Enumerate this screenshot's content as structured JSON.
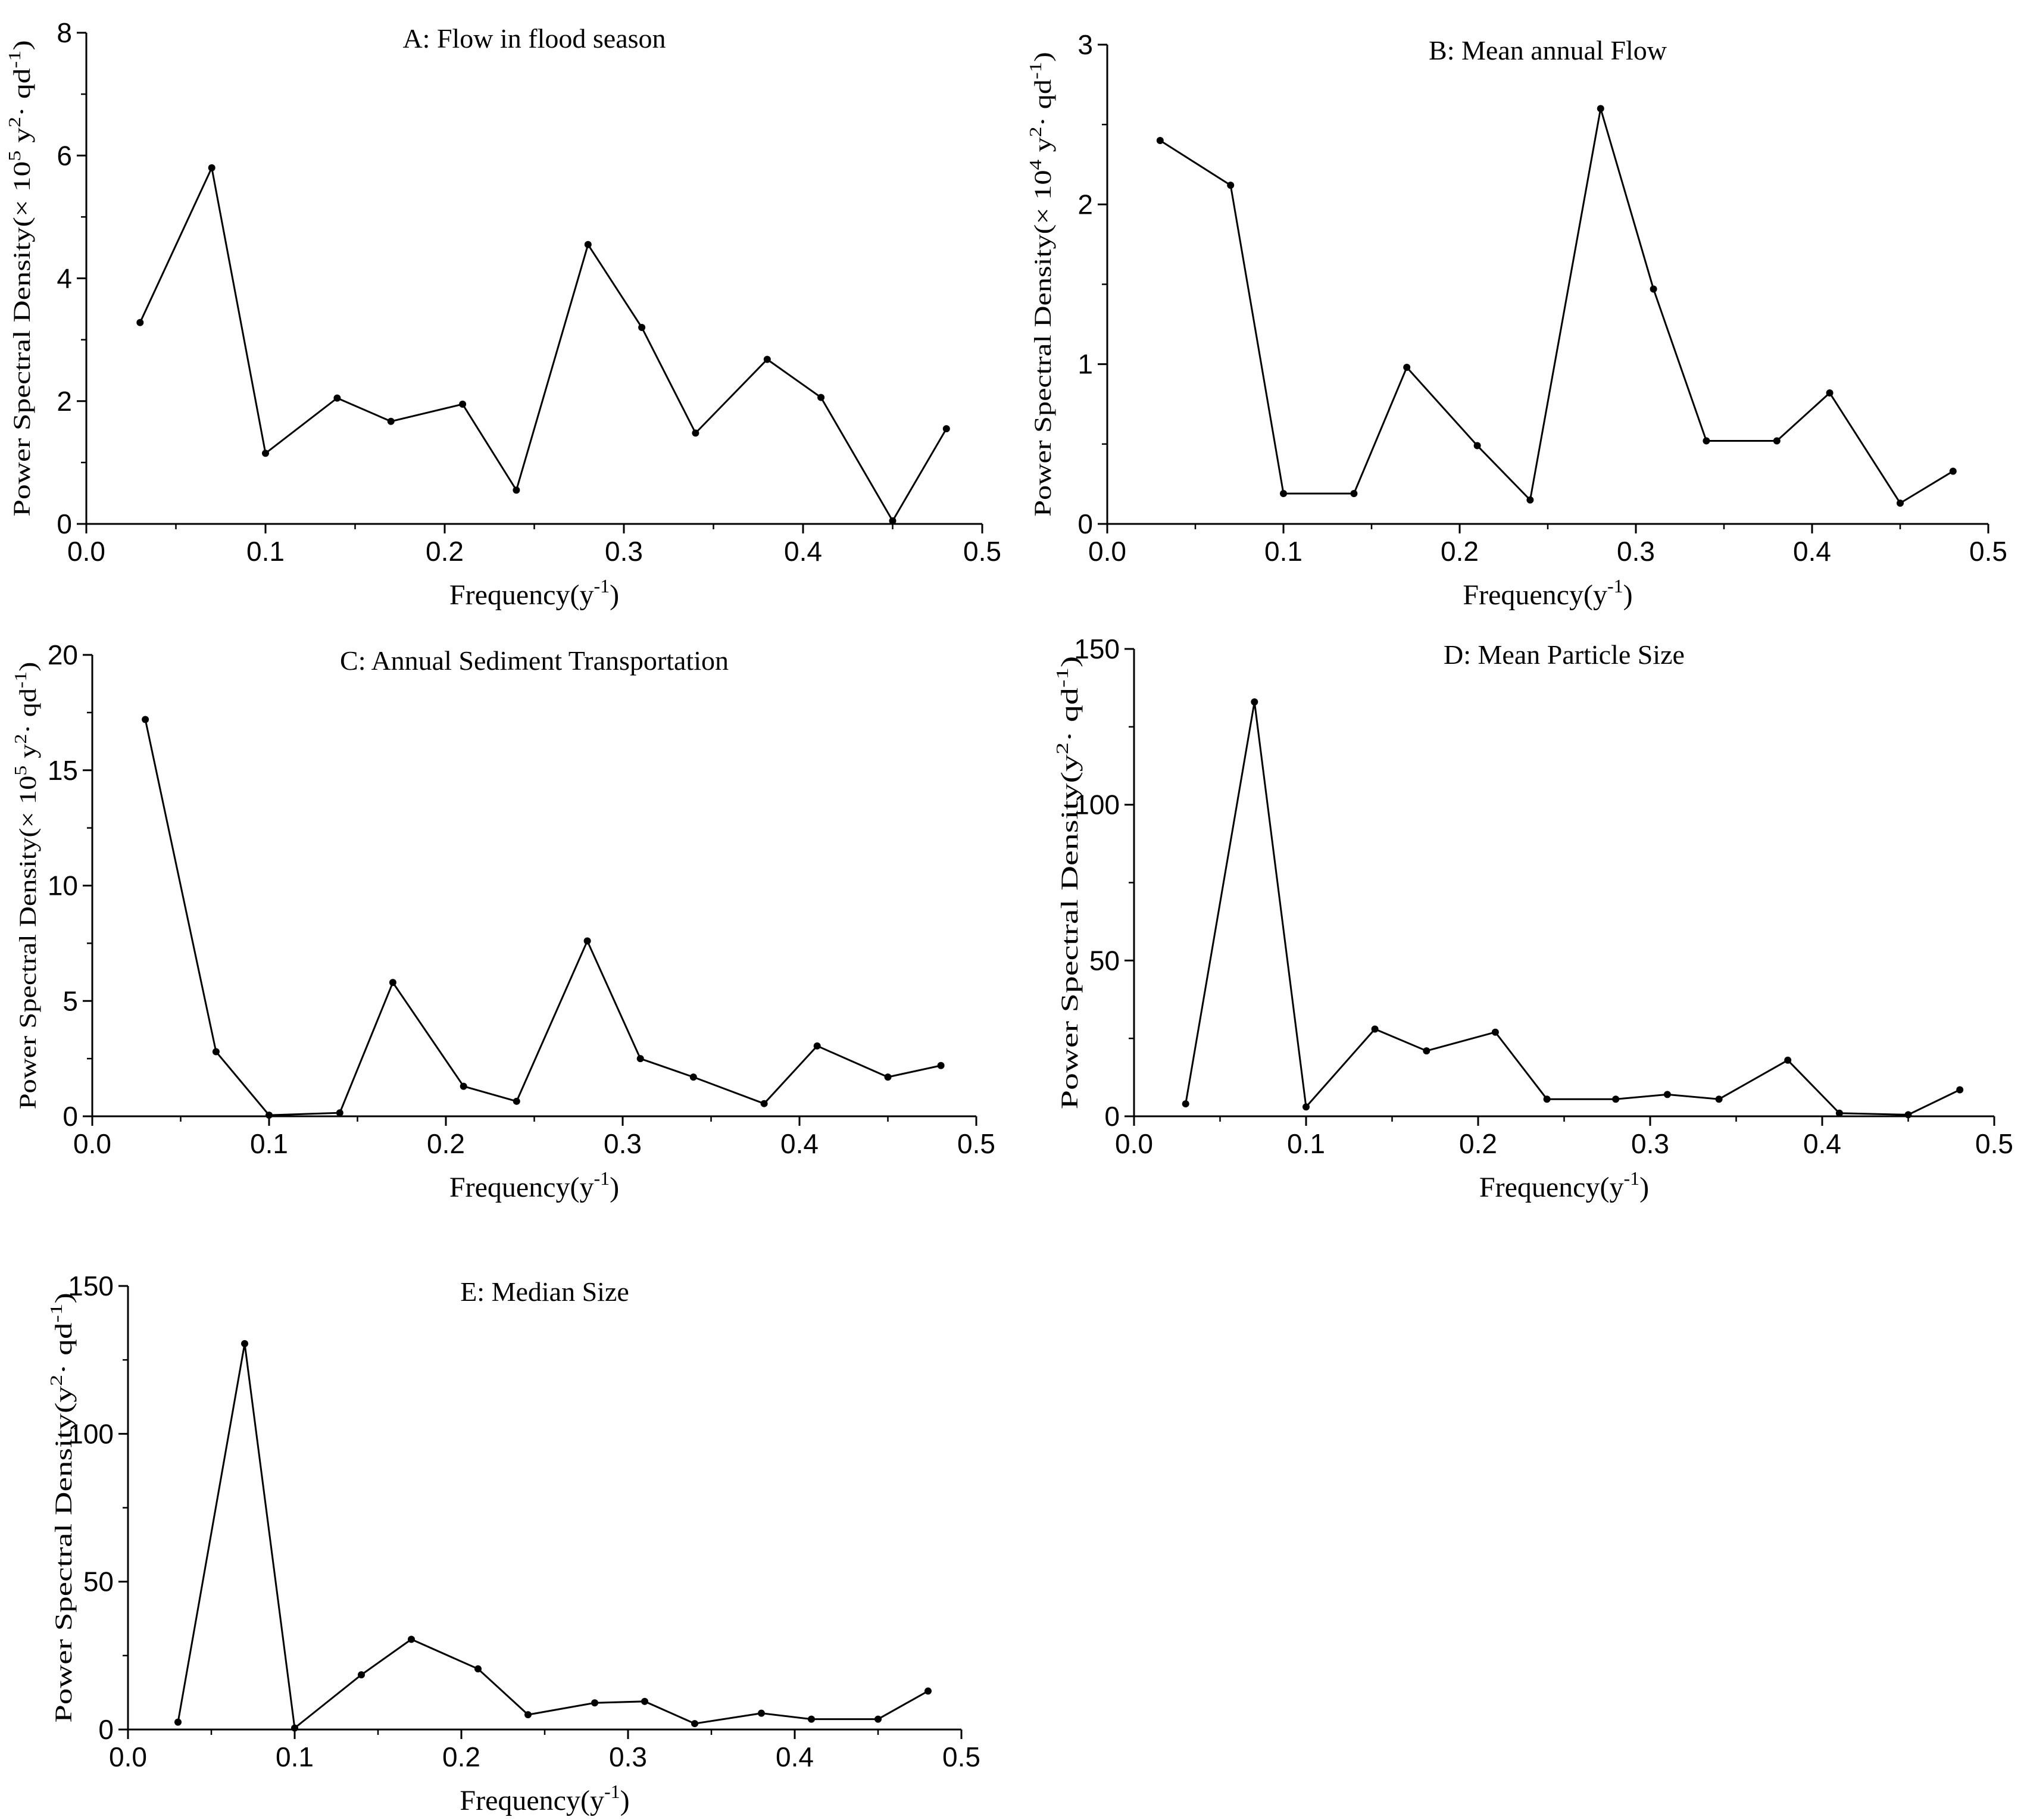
{
  "colors": {
    "line": "#000000",
    "background": "#ffffff"
  },
  "chart_data": [
    {
      "id": "A",
      "type": "line",
      "title": "A: Flow in flood season",
      "xlabel": "Frequency(y-1)",
      "xlabel_base": "Frequency(y",
      "xlabel_sup": "-1",
      "xlabel_close": ")",
      "ylabel": "Power Spectral Density(× 105 y2· qd-1)",
      "ylabel_parts": [
        {
          "t": "Power Spectral Density(× 10"
        },
        {
          "t": "5",
          "sup": true
        },
        {
          "t": " y"
        },
        {
          "t": "2",
          "sup": true
        },
        {
          "t": "· qd"
        },
        {
          "t": "-1",
          "sup": true
        },
        {
          "t": ")"
        }
      ],
      "xlim": [
        0,
        0.5
      ],
      "ylim": [
        0,
        8
      ],
      "xticks": [
        0,
        0.1,
        0.2,
        0.3,
        0.4,
        0.5
      ],
      "xtick_labels": [
        "0.0",
        "0.1",
        "0.2",
        "0.3",
        "0.4",
        "0.5"
      ],
      "yticks": [
        0,
        2,
        4,
        6,
        8
      ],
      "ytick_labels": [
        "0",
        "2",
        "4",
        "6",
        "8"
      ],
      "x": [
        0.03,
        0.07,
        0.1,
        0.14,
        0.17,
        0.21,
        0.24,
        0.28,
        0.31,
        0.34,
        0.38,
        0.41,
        0.45,
        0.48
      ],
      "y": [
        3.28,
        5.8,
        1.15,
        2.05,
        1.67,
        1.95,
        0.55,
        4.55,
        3.2,
        1.48,
        2.68,
        2.06,
        0.05,
        1.55
      ]
    },
    {
      "id": "B",
      "type": "line",
      "title": "B: Mean annual Flow",
      "xlabel": "Frequency(y-1)",
      "xlabel_base": "Frequency(y",
      "xlabel_sup": "-1",
      "xlabel_close": ")",
      "ylabel": "Power Spectral Density(× 104 y2· qd-1)",
      "ylabel_parts": [
        {
          "t": "Power Spectral Density(× 10"
        },
        {
          "t": "4",
          "sup": true
        },
        {
          "t": " y"
        },
        {
          "t": "2",
          "sup": true
        },
        {
          "t": "· qd"
        },
        {
          "t": "-1",
          "sup": true
        },
        {
          "t": ")"
        }
      ],
      "xlim": [
        0,
        0.5
      ],
      "ylim": [
        0,
        3
      ],
      "xticks": [
        0,
        0.1,
        0.2,
        0.3,
        0.4,
        0.5
      ],
      "xtick_labels": [
        "0.0",
        "0.1",
        "0.2",
        "0.3",
        "0.4",
        "0.5"
      ],
      "yticks": [
        0,
        1,
        2,
        3
      ],
      "ytick_labels": [
        "0",
        "1",
        "2",
        "3"
      ],
      "x": [
        0.03,
        0.07,
        0.1,
        0.14,
        0.17,
        0.21,
        0.24,
        0.28,
        0.31,
        0.34,
        0.38,
        0.41,
        0.45,
        0.48
      ],
      "y": [
        2.4,
        2.12,
        0.19,
        0.19,
        0.98,
        0.49,
        0.15,
        2.6,
        1.47,
        0.52,
        0.52,
        0.82,
        0.13,
        0.33
      ]
    },
    {
      "id": "C",
      "type": "line",
      "title": "C:  Annual Sediment Transportation",
      "xlabel": "Frequency(y-1)",
      "xlabel_base": "Frequency(y",
      "xlabel_sup": "-1",
      "xlabel_close": ")",
      "ylabel": "Power Spectral Density(× 105 y2· qd-1)",
      "ylabel_parts": [
        {
          "t": "Power Spectral Density(× 10"
        },
        {
          "t": "5",
          "sup": true
        },
        {
          "t": " y"
        },
        {
          "t": "2",
          "sup": true
        },
        {
          "t": "· qd"
        },
        {
          "t": "-1",
          "sup": true
        },
        {
          "t": ")"
        }
      ],
      "xlim": [
        0,
        0.5
      ],
      "ylim": [
        0,
        20
      ],
      "xticks": [
        0,
        0.1,
        0.2,
        0.3,
        0.4,
        0.5
      ],
      "xtick_labels": [
        "0.0",
        "0.1",
        "0.2",
        "0.3",
        "0.4",
        "0.5"
      ],
      "yticks": [
        0,
        5,
        10,
        15,
        20
      ],
      "ytick_labels": [
        "0",
        "5",
        "10",
        "15",
        "20"
      ],
      "x": [
        0.03,
        0.07,
        0.1,
        0.14,
        0.17,
        0.21,
        0.24,
        0.28,
        0.31,
        0.34,
        0.38,
        0.41,
        0.45,
        0.48
      ],
      "y": [
        17.2,
        2.8,
        0.05,
        0.15,
        5.8,
        1.3,
        0.65,
        7.6,
        2.5,
        1.7,
        0.55,
        3.05,
        1.7,
        2.2
      ]
    },
    {
      "id": "D",
      "type": "line",
      "title": "D:  Mean Particle Size",
      "xlabel": "Frequency(y-1)",
      "xlabel_base": "Frequency(y",
      "xlabel_sup": "-1",
      "xlabel_close": ")",
      "ylabel": "Power Spectral Density(y2· qd-1)",
      "ylabel_parts": [
        {
          "t": "Power Spectral Density(y"
        },
        {
          "t": "2",
          "sup": true
        },
        {
          "t": "· qd"
        },
        {
          "t": "-1",
          "sup": true
        },
        {
          "t": ")"
        }
      ],
      "xlim": [
        0,
        0.5
      ],
      "ylim": [
        0,
        150
      ],
      "xticks": [
        0,
        0.1,
        0.2,
        0.3,
        0.4,
        0.5
      ],
      "xtick_labels": [
        "0.0",
        "0.1",
        "0.2",
        "0.3",
        "0.4",
        "0.5"
      ],
      "yticks": [
        0,
        50,
        100,
        150
      ],
      "ytick_labels": [
        "0",
        "50",
        "100",
        "150"
      ],
      "x": [
        0.03,
        0.07,
        0.1,
        0.14,
        0.17,
        0.21,
        0.24,
        0.28,
        0.31,
        0.34,
        0.38,
        0.41,
        0.45,
        0.48
      ],
      "y": [
        4,
        133,
        3,
        28,
        21,
        27,
        5.5,
        5.5,
        7,
        5.5,
        18,
        1,
        0.5,
        8.5
      ]
    },
    {
      "id": "E",
      "type": "line",
      "title": "E:  Median Size",
      "xlabel": "Frequency(y-1)",
      "xlabel_base": "Frequency(y",
      "xlabel_sup": "-1",
      "xlabel_close": ")",
      "ylabel": "Power Spectral Density(y2· qd-1)",
      "ylabel_parts": [
        {
          "t": "Power Spectral Density(y"
        },
        {
          "t": "2",
          "sup": true
        },
        {
          "t": "· qd"
        },
        {
          "t": "-1",
          "sup": true
        },
        {
          "t": ")"
        }
      ],
      "xlim": [
        0,
        0.5
      ],
      "ylim": [
        0,
        150
      ],
      "xticks": [
        0,
        0.1,
        0.2,
        0.3,
        0.4,
        0.5
      ],
      "xtick_labels": [
        "0.0",
        "0.1",
        "0.2",
        "0.3",
        "0.4",
        "0.5"
      ],
      "yticks": [
        0,
        50,
        100,
        150
      ],
      "ytick_labels": [
        "0",
        "50",
        "100",
        "150"
      ],
      "x": [
        0.03,
        0.07,
        0.1,
        0.14,
        0.17,
        0.21,
        0.24,
        0.28,
        0.31,
        0.34,
        0.38,
        0.41,
        0.45,
        0.48
      ],
      "y": [
        2.5,
        130.5,
        0.5,
        18.5,
        30.5,
        20.5,
        5,
        9,
        9.5,
        2,
        5.5,
        3.5,
        3.5,
        13
      ]
    }
  ]
}
